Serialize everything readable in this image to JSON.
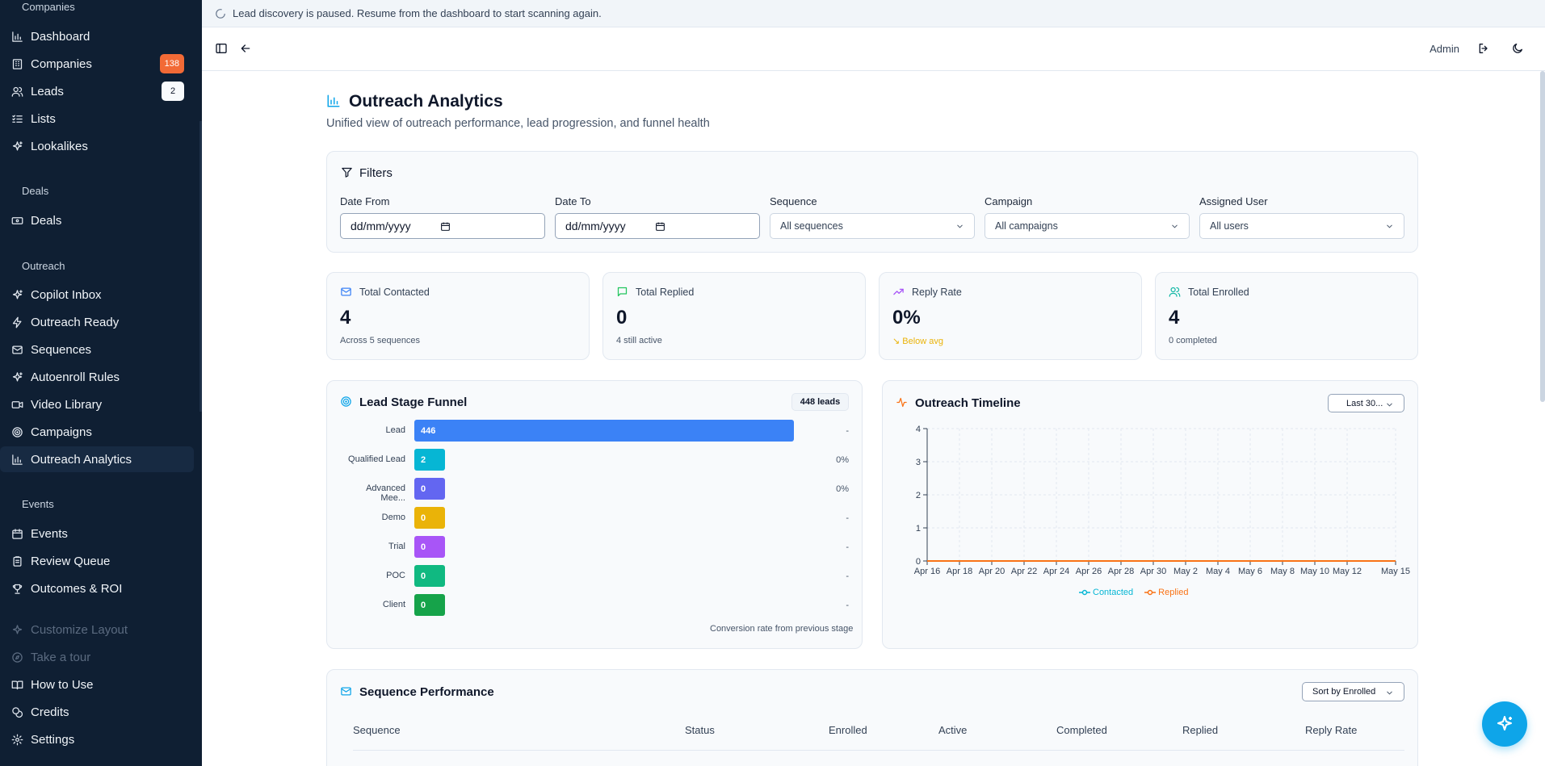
{
  "sidebar": {
    "sections": {
      "companies": "Companies",
      "deals": "Deals",
      "outreach": "Outreach",
      "events": "Events"
    },
    "items": {
      "dashboard": "Dashboard",
      "companies": "Companies",
      "companies_badge": "138",
      "leads": "Leads",
      "leads_badge": "2",
      "lists": "Lists",
      "lookalikes": "Lookalikes",
      "deals": "Deals",
      "copilot_inbox": "Copilot Inbox",
      "outreach_ready": "Outreach Ready",
      "sequences": "Sequences",
      "autoenroll_rules": "Autoenroll Rules",
      "video_library": "Video Library",
      "campaigns": "Campaigns",
      "outreach_analytics": "Outreach Analytics",
      "events": "Events",
      "review_queue": "Review Queue",
      "outcomes_roi": "Outcomes & ROI",
      "customize_layout": "Customize Layout",
      "take_a_tour": "Take a tour",
      "how_to_use": "How to Use",
      "credits": "Credits",
      "settings": "Settings"
    }
  },
  "banner": {
    "text": "Lead discovery is paused. Resume from the dashboard to start scanning again."
  },
  "topbar": {
    "user": "Admin"
  },
  "page": {
    "title": "Outreach Analytics",
    "subtitle": "Unified view of outreach performance, lead progression, and funnel health"
  },
  "filters": {
    "title": "Filters",
    "date_from_label": "Date From",
    "date_from_value": "dd/mm/yyyy",
    "date_to_label": "Date To",
    "date_to_value": "dd/mm/yyyy",
    "sequence_label": "Sequence",
    "sequence_value": "All sequences",
    "campaign_label": "Campaign",
    "campaign_value": "All campaigns",
    "user_label": "Assigned User",
    "user_value": "All users"
  },
  "stats": [
    {
      "label": "Total Contacted",
      "value": "4",
      "sub": "Across 5 sequences",
      "color": "#3b82f6"
    },
    {
      "label": "Total Replied",
      "value": "0",
      "sub": "4 still active",
      "color": "#22c55e"
    },
    {
      "label": "Reply Rate",
      "value": "0%",
      "sub": "↘ Below avg",
      "color": "#a855f7"
    },
    {
      "label": "Total Enrolled",
      "value": "4",
      "sub": "0 completed",
      "color": "#14b8a6"
    }
  ],
  "funnel": {
    "title": "Lead Stage Funnel",
    "total": "448 leads",
    "note": "Conversion rate from previous stage",
    "rows": [
      {
        "label": "Lead",
        "value": 446,
        "display": "446",
        "pct": "-",
        "color": "#3b82f6"
      },
      {
        "label": "Qualified Lead",
        "value": 2,
        "display": "2",
        "pct": "0%",
        "color": "#06b6d4"
      },
      {
        "label": "Advanced Mee...",
        "value": 0,
        "display": "0",
        "pct": "0%",
        "color": "#6366f1"
      },
      {
        "label": "Demo",
        "value": 0,
        "display": "0",
        "pct": "-",
        "color": "#eab308"
      },
      {
        "label": "Trial",
        "value": 0,
        "display": "0",
        "pct": "-",
        "color": "#a855f7"
      },
      {
        "label": "POC",
        "value": 0,
        "display": "0",
        "pct": "-",
        "color": "#10b981"
      },
      {
        "label": "Client",
        "value": 0,
        "display": "0",
        "pct": "-",
        "color": "#16a34a"
      }
    ]
  },
  "timeline": {
    "title": "Outreach Timeline",
    "range_select": "Last 30...",
    "legend_contacted": "Contacted",
    "legend_replied": "Replied"
  },
  "chart_data": {
    "type": "line",
    "x": [
      "Apr 16",
      "Apr 17",
      "Apr 18",
      "Apr 19",
      "Apr 20",
      "Apr 21",
      "Apr 22",
      "Apr 23",
      "Apr 24",
      "Apr 25",
      "Apr 26",
      "Apr 27",
      "Apr 28",
      "Apr 29",
      "Apr 30",
      "May 1",
      "May 2",
      "May 3",
      "May 4",
      "May 5",
      "May 6",
      "May 7",
      "May 8",
      "May 9",
      "May 10",
      "May 11",
      "May 12",
      "May 13",
      "May 14",
      "May 15"
    ],
    "x_tick_labels": [
      "Apr 16",
      "Apr 18",
      "Apr 20",
      "Apr 22",
      "Apr 24",
      "Apr 26",
      "Apr 28",
      "Apr 30",
      "May 2",
      "May 4",
      "May 6",
      "May 8",
      "May 10",
      "May 12",
      "May 15"
    ],
    "y_ticks": [
      "0",
      "1",
      "2",
      "3",
      "4"
    ],
    "ylim": [
      0,
      4
    ],
    "grid": true,
    "legend": "bottom",
    "series": [
      {
        "name": "Contacted",
        "color": "#06b6d4",
        "values": [
          0,
          0,
          0,
          0,
          0,
          0,
          0,
          0,
          0,
          0,
          0,
          0,
          0,
          0,
          0,
          0,
          0,
          0,
          0,
          0,
          0,
          0,
          0,
          0,
          0,
          0,
          0,
          0,
          0,
          0
        ]
      },
      {
        "name": "Replied",
        "color": "#f97316",
        "values": [
          0,
          0,
          0,
          0,
          0,
          0,
          0,
          0,
          0,
          0,
          0,
          0,
          0,
          0,
          0,
          0,
          0,
          0,
          0,
          0,
          0,
          0,
          0,
          0,
          0,
          0,
          0,
          0,
          0,
          0
        ]
      }
    ]
  },
  "sequence_perf": {
    "title": "Sequence Performance",
    "sort_select": "Sort by Enrolled",
    "columns": [
      "Sequence",
      "Status",
      "Enrolled",
      "Active",
      "Completed",
      "Replied",
      "Reply Rate"
    ]
  }
}
